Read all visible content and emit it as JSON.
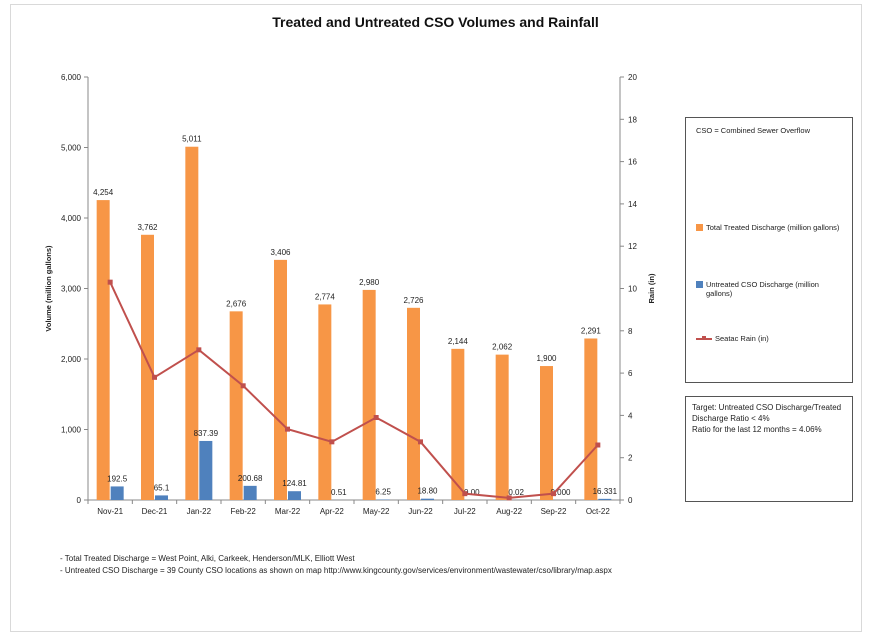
{
  "chart_data": {
    "type": "bar",
    "title": "Treated and Untreated CSO Volumes and Rainfall",
    "ylabel": "Volume (million gallons)",
    "y2label": "Rain (in)",
    "categories": [
      "Nov-21",
      "Dec-21",
      "Jan-22",
      "Feb-22",
      "Mar-22",
      "Apr-22",
      "May-22",
      "Jun-22",
      "Jul-22",
      "Aug-22",
      "Sep-22",
      "Oct-22"
    ],
    "ylim": [
      0,
      6000
    ],
    "y2lim": [
      0,
      20
    ],
    "yticks": [
      "0",
      "1,000",
      "2,000",
      "3,000",
      "4,000",
      "5,000",
      "6,000"
    ],
    "y2ticks": [
      "0",
      "2",
      "4",
      "6",
      "8",
      "10",
      "12",
      "14",
      "16",
      "18",
      "20"
    ],
    "series": [
      {
        "name": "Total Treated Discharge (million gallons)",
        "type": "bar",
        "axis": "left",
        "color": "#f79646",
        "values": [
          4254,
          3762,
          5011,
          2676,
          3406,
          2774,
          2980,
          2726,
          2144,
          2062,
          1900,
          2291
        ],
        "labels": [
          "4,254",
          "3,762",
          "5,011",
          "2,676",
          "3,406",
          "2,774",
          "2,980",
          "2,726",
          "2,144",
          "2,062",
          "1,900",
          "2,291"
        ]
      },
      {
        "name": "Untreated CSO Discharge (million gallons)",
        "type": "bar",
        "axis": "left",
        "color": "#4f81bd",
        "values": [
          192.5,
          65.1,
          837.39,
          200.68,
          124.81,
          0.51,
          6.25,
          18.8,
          0,
          0.02,
          0,
          16.331
        ],
        "labels": [
          "192.5",
          "65.1",
          "837.39",
          "200.68",
          "124.81",
          "0.51",
          "6.25",
          "18.80",
          "0.00",
          "0.02",
          "0.000",
          "16.331"
        ]
      },
      {
        "name": "Seatac Rain (in)",
        "type": "line",
        "axis": "right",
        "color": "#c0504d",
        "values": [
          10.3,
          5.8,
          7.1,
          5.4,
          3.35,
          2.75,
          3.9,
          2.75,
          0.3,
          0.1,
          0.3,
          2.6
        ]
      }
    ],
    "grid": false,
    "legend": "right"
  },
  "legend": {
    "heading": "CSO = Combined Sewer Overflow",
    "treated": "Total Treated Discharge (million gallons)",
    "untreated": "Untreated CSO Discharge (million gallons)",
    "rain": "Seatac Rain (in)"
  },
  "target": {
    "line1": "Target: Untreated CSO Discharge/Treated Discharge Ratio < 4%",
    "line2": "Ratio for the last 12 months = 4.06%"
  },
  "notes": [
    "- Total Treated Discharge = West Point, Alki, Carkeek, Henderson/MLK, Elliott West",
    "- Untreated CSO Discharge = 39  County CSO locations as shown on map http://www.kingcounty.gov/services/environment/wastewater/cso/library/map.aspx"
  ]
}
